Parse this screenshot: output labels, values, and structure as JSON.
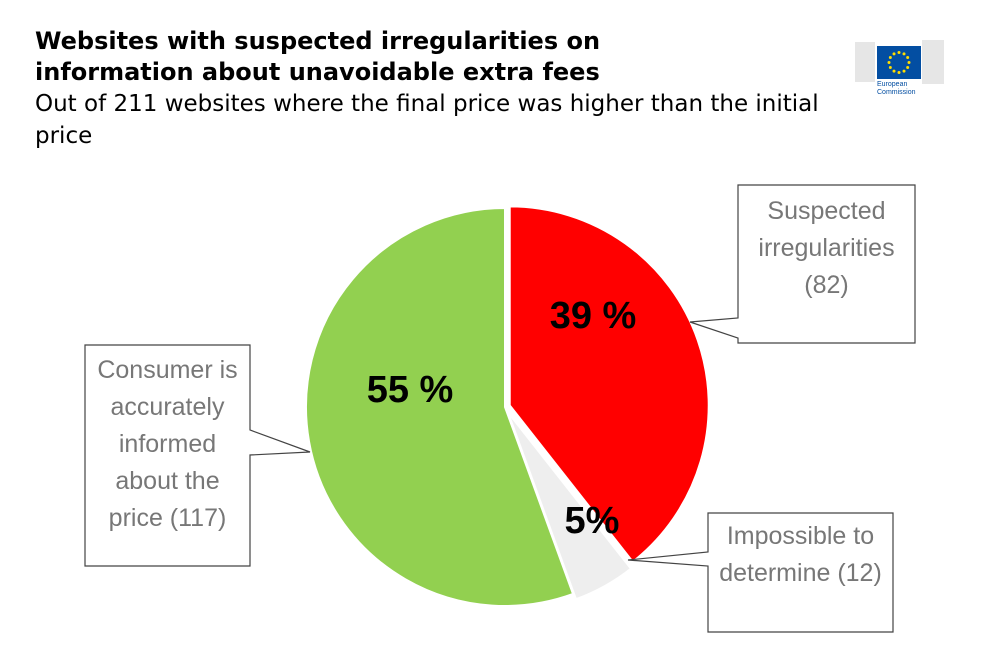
{
  "logo": "European Commission",
  "chart_data": {
    "type": "pie",
    "title": "Websites with suspected irregularities on information about unavoidable extra fees",
    "subtitle": "Out of 211 websites where the final price was higher than the initial price",
    "categories": [
      "Suspected irregularities (82)",
      "Impossible to determine (12)",
      "Consumer is accurately informed about the price (117)"
    ],
    "values": [
      39,
      5,
      55
    ],
    "value_labels": [
      "39 %",
      "5%",
      "55 %"
    ],
    "colors": [
      "#ff0000",
      "#eeeeee",
      "#92d050"
    ]
  }
}
